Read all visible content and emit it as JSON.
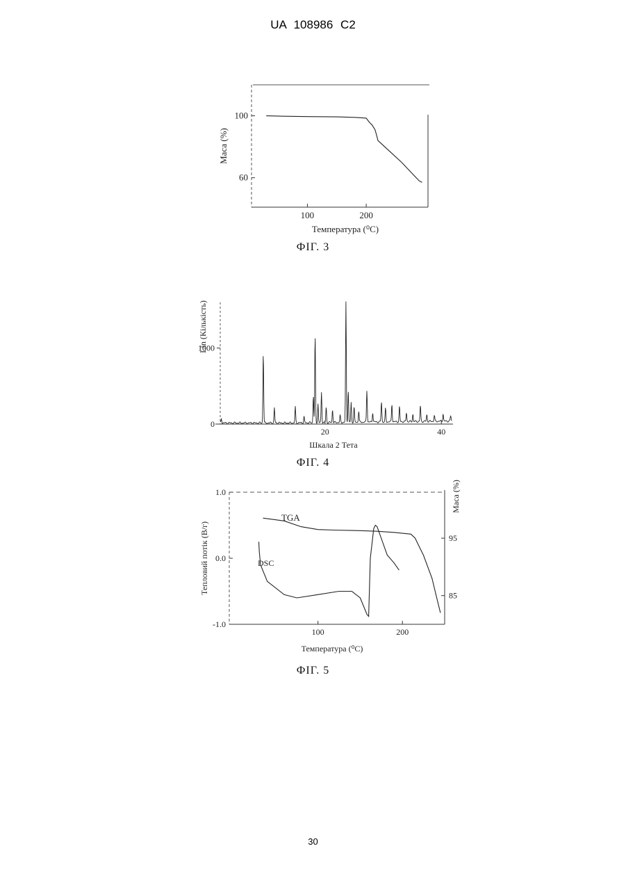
{
  "header": {
    "text": "UA 108986 C2"
  },
  "page_number": "30",
  "figures": [
    {
      "caption": "ФІГ. 3"
    },
    {
      "caption": "ФІГ. 4"
    },
    {
      "caption": "ФІГ. 5"
    }
  ],
  "chart_data": [
    {
      "type": "line",
      "name": "fig3",
      "xlabel": "Температура (⁰C)",
      "ylabel": "Маса (%)",
      "xticks": [
        100,
        200
      ],
      "yticks": [
        100,
        60
      ],
      "xlim": [
        5,
        305
      ],
      "ylim": [
        41,
        120
      ],
      "series": [
        {
          "x": [
            30,
            60,
            100,
            150,
            180,
            200,
            205,
            210,
            215,
            218,
            220,
            240,
            260,
            280,
            290,
            295
          ],
          "y": [
            100,
            99.7,
            99.5,
            99.3,
            99,
            98.5,
            96,
            94,
            91,
            87,
            84,
            77,
            70,
            62,
            58,
            57
          ]
        }
      ]
    },
    {
      "type": "line",
      "name": "fig4",
      "xlabel": "Шкала 2 Тета",
      "ylabel": "Lin (Кількість)",
      "xticks": [
        20,
        40
      ],
      "yticks": [
        1000,
        0
      ],
      "xlim": [
        2,
        42
      ],
      "ylim": [
        0,
        1600
      ],
      "peaks": [
        {
          "x": 2.2,
          "y": 60
        },
        {
          "x": 9.4,
          "y": 930
        },
        {
          "x": 11.3,
          "y": 200
        },
        {
          "x": 14.9,
          "y": 210
        },
        {
          "x": 16.4,
          "y": 80
        },
        {
          "x": 18.0,
          "y": 360
        },
        {
          "x": 18.3,
          "y": 1150
        },
        {
          "x": 18.8,
          "y": 250
        },
        {
          "x": 19.4,
          "y": 400
        },
        {
          "x": 20.2,
          "y": 200
        },
        {
          "x": 21.3,
          "y": 170
        },
        {
          "x": 22.6,
          "y": 90
        },
        {
          "x": 23.6,
          "y": 1580
        },
        {
          "x": 24.0,
          "y": 420
        },
        {
          "x": 24.5,
          "y": 260
        },
        {
          "x": 25.0,
          "y": 200
        },
        {
          "x": 25.8,
          "y": 150
        },
        {
          "x": 27.2,
          "y": 420
        },
        {
          "x": 28.2,
          "y": 130
        },
        {
          "x": 29.7,
          "y": 270
        },
        {
          "x": 30.4,
          "y": 180
        },
        {
          "x": 31.5,
          "y": 240
        },
        {
          "x": 32.8,
          "y": 200
        },
        {
          "x": 34.0,
          "y": 120
        },
        {
          "x": 35.1,
          "y": 100
        },
        {
          "x": 36.4,
          "y": 210
        },
        {
          "x": 37.5,
          "y": 90
        },
        {
          "x": 38.8,
          "y": 80
        },
        {
          "x": 40.3,
          "y": 100
        },
        {
          "x": 41.6,
          "y": 70
        }
      ]
    },
    {
      "type": "line",
      "name": "fig5",
      "xlabel": "Температура (⁰C)",
      "ylabel": "Тепловий потік (В/г)",
      "ylabel_right": "Маса (%)",
      "xticks": [
        100,
        200
      ],
      "yticks": [
        1.0,
        0.0,
        -1.0
      ],
      "yticks_right": [
        95,
        85
      ],
      "xlim": [
        -5,
        250
      ],
      "ylim": [
        -1.0,
        1.0
      ],
      "ylim_right": [
        80,
        103
      ],
      "series": [
        {
          "name": "TGA",
          "x": [
            35,
            60,
            80,
            100,
            120,
            150,
            170,
            190,
            210,
            215,
            220,
            225,
            230,
            235,
            240,
            245
          ],
          "y": [
            98.5,
            98,
            97,
            96.5,
            96.4,
            96.3,
            96.2,
            96,
            95.7,
            95,
            93.5,
            92,
            90,
            88,
            85,
            82
          ]
        },
        {
          "name": "DSC",
          "x": [
            30,
            30.5,
            32,
            40,
            60,
            75,
            100,
            125,
            140,
            150,
            158,
            160,
            162,
            166,
            168,
            170,
            175,
            182,
            190,
            196
          ],
          "y": [
            0.25,
            0.1,
            -0.1,
            -0.35,
            -0.55,
            -0.6,
            -0.55,
            -0.5,
            -0.5,
            -0.6,
            -0.85,
            -0.88,
            0.0,
            0.45,
            0.5,
            0.48,
            0.3,
            0.05,
            -0.07,
            -0.18
          ]
        }
      ]
    }
  ]
}
